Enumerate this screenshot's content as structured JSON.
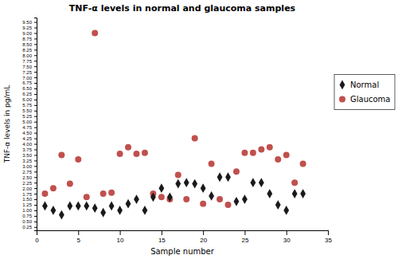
{
  "chart_data": {
    "type": "scatter",
    "title": "TNF-α levels in normal and glaucoma samples",
    "xlabel": "Sample number",
    "ylabel": "TNF-α levels in pg/mL",
    "series": [
      {
        "name": "Normal",
        "color": "#1a1a1a",
        "marker": "diamond",
        "x": [
          1,
          2,
          3,
          4,
          5,
          6,
          7,
          8,
          9,
          10,
          11,
          12,
          13,
          14,
          15,
          16,
          17,
          18,
          19,
          20,
          21,
          22,
          23,
          24,
          25,
          26,
          27,
          28,
          29,
          30,
          31,
          32
        ],
        "values": [
          1.2,
          1.0,
          0.8,
          1.2,
          1.2,
          1.2,
          1.1,
          0.9,
          1.2,
          1.0,
          1.3,
          1.5,
          1.0,
          1.6,
          2.0,
          1.6,
          2.2,
          2.25,
          2.2,
          2.0,
          1.65,
          2.5,
          2.5,
          1.4,
          1.5,
          2.25,
          2.25,
          1.75,
          1.25,
          1.0,
          1.75,
          1.75
        ]
      },
      {
        "name": "Glaucoma",
        "color": "#c0504d",
        "marker": "circle",
        "x": [
          1,
          2,
          3,
          4,
          5,
          6,
          7,
          8,
          9,
          10,
          11,
          12,
          13,
          14,
          15,
          16,
          17,
          18,
          19,
          20,
          21,
          22,
          23,
          24,
          25,
          26,
          27,
          28,
          29,
          30,
          31,
          32
        ],
        "values": [
          1.75,
          2.0,
          3.5,
          2.2,
          3.3,
          1.6,
          9.0,
          1.75,
          1.8,
          3.55,
          3.85,
          3.55,
          3.6,
          1.75,
          1.6,
          1.5,
          2.6,
          1.5,
          4.25,
          1.3,
          3.1,
          1.5,
          1.25,
          2.75,
          3.6,
          3.6,
          3.75,
          3.85,
          3.3,
          3.5,
          2.25,
          3.1
        ]
      }
    ],
    "xlim": [
      0,
      35
    ],
    "xticks": [
      0,
      5,
      10,
      15,
      20,
      25,
      30,
      35
    ],
    "ylim": [
      0.1,
      9.7
    ],
    "yticks": [
      0.25,
      {
        "value": 0.5,
        "label": "0.50"
      },
      0.75,
      {
        "value": 1.0,
        "label": "1.00"
      },
      1.25,
      {
        "value": 1.5,
        "label": "1.50"
      },
      1.75,
      {
        "value": 2.0,
        "label": "2.00"
      },
      2.25,
      {
        "value": 2.5,
        "label": "2.50"
      },
      2.75,
      {
        "value": 3.0,
        "label": "3.00"
      },
      3.25,
      {
        "value": 3.5,
        "label": "3.50"
      },
      3.75,
      {
        "value": 4.0,
        "label": "4.00"
      },
      4.25,
      {
        "value": 4.5,
        "label": "4.50"
      },
      4.75,
      {
        "value": 5.0,
        "label": "5.00"
      },
      5.25,
      {
        "value": 5.5,
        "label": "5.50"
      },
      5.75,
      {
        "value": 6.0,
        "label": "6.00"
      },
      6.25,
      {
        "value": 6.5,
        "label": "6.50"
      },
      6.75,
      {
        "value": 7.0,
        "label": "7.00"
      },
      7.25,
      {
        "value": 7.5,
        "label": "7.50"
      },
      7.75,
      {
        "value": 8.0,
        "label": "8.00"
      },
      8.25,
      {
        "value": 8.5,
        "label": "8.50"
      },
      8.75,
      {
        "value": 9.0,
        "label": "9.00"
      },
      9.25,
      {
        "value": 9.5,
        "label": "9.50"
      }
    ],
    "grid": false,
    "legend": "right"
  }
}
